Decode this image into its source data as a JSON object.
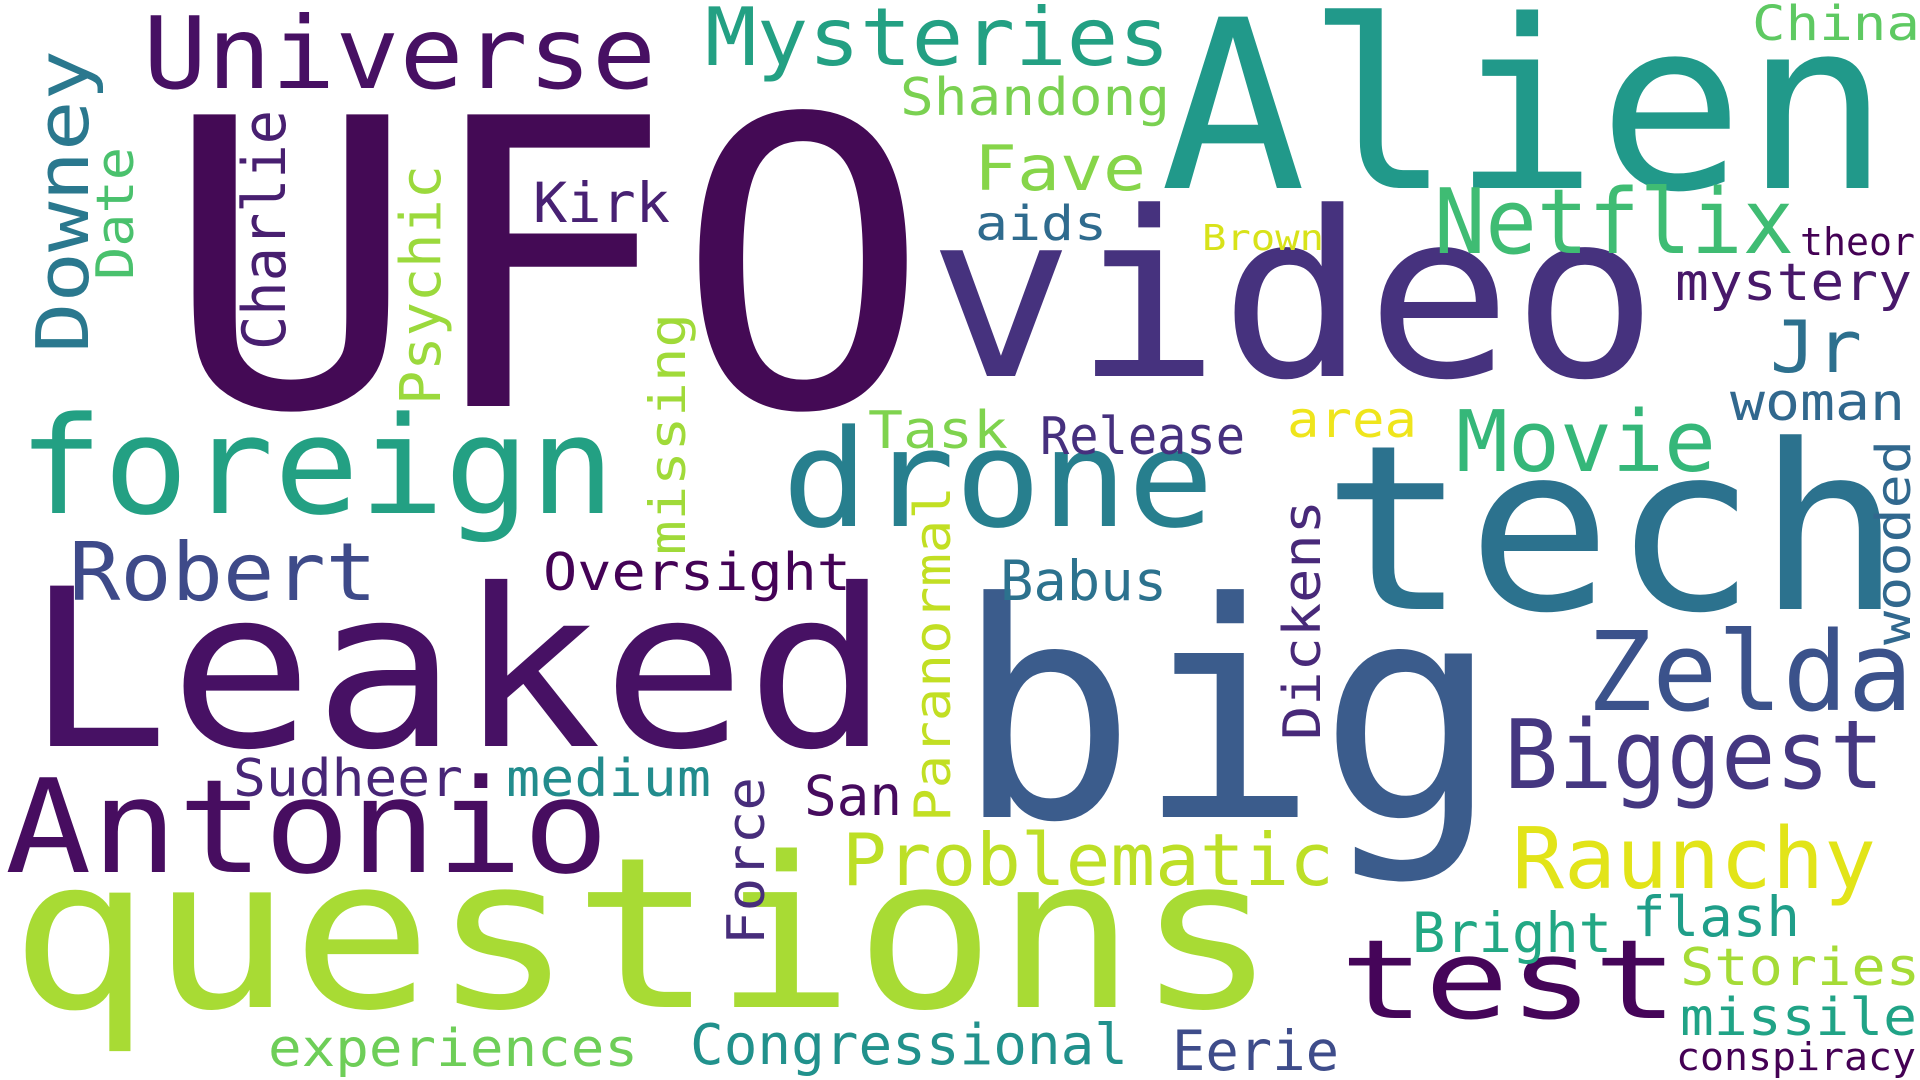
{
  "words": [
    {
      "text": "UFO",
      "color": "#440a55",
      "rotation": "horizontal"
    },
    {
      "text": "Alien",
      "color": "#21998a",
      "rotation": "horizontal"
    },
    {
      "text": "video",
      "color": "#46327e",
      "rotation": "horizontal"
    },
    {
      "text": "tech",
      "color": "#2c728e",
      "rotation": "horizontal"
    },
    {
      "text": "big",
      "color": "#3b5c8c",
      "rotation": "horizontal"
    },
    {
      "text": "questions",
      "color": "#a8db34",
      "rotation": "horizontal"
    },
    {
      "text": "Leaked",
      "color": "#471164",
      "rotation": "horizontal"
    },
    {
      "text": "foreign",
      "color": "#23a083",
      "rotation": "horizontal"
    },
    {
      "text": "drone",
      "color": "#277f8e",
      "rotation": "horizontal"
    },
    {
      "text": "Antonio",
      "color": "#470d60",
      "rotation": "horizontal"
    },
    {
      "text": "Universe",
      "color": "#471063",
      "rotation": "horizontal"
    },
    {
      "text": "Mysteries",
      "color": "#23a083",
      "rotation": "horizontal"
    },
    {
      "text": "Netflix",
      "color": "#3fbc73",
      "rotation": "horizontal"
    },
    {
      "text": "test",
      "color": "#450559",
      "rotation": "horizontal"
    },
    {
      "text": "Zelda",
      "color": "#3b528b",
      "rotation": "horizontal"
    },
    {
      "text": "Biggest",
      "color": "#453781",
      "rotation": "horizontal"
    },
    {
      "text": "Raunchy",
      "color": "#e2e418",
      "rotation": "horizontal"
    },
    {
      "text": "Movie",
      "color": "#35b779",
      "rotation": "horizontal"
    },
    {
      "text": "Robert",
      "color": "#3e4a89",
      "rotation": "horizontal"
    },
    {
      "text": "Problematic",
      "color": "#bddf26",
      "rotation": "horizontal"
    },
    {
      "text": "Congressional",
      "color": "#21918c",
      "rotation": "horizontal"
    },
    {
      "text": "experiences",
      "color": "#6ece58",
      "rotation": "horizontal"
    },
    {
      "text": "Downey",
      "color": "#2a788e",
      "rotation": "vertical"
    },
    {
      "text": "Charlie",
      "color": "#481f70",
      "rotation": "vertical"
    },
    {
      "text": "Psychic",
      "color": "#9bd93c",
      "rotation": "vertical"
    },
    {
      "text": "Date",
      "color": "#4ac16d",
      "rotation": "vertical"
    },
    {
      "text": "missing",
      "color": "#a0da39",
      "rotation": "vertical"
    },
    {
      "text": "Paranormal",
      "color": "#c2df23",
      "rotation": "vertical"
    },
    {
      "text": "Dickens",
      "color": "#482979",
      "rotation": "vertical"
    },
    {
      "text": "wooded",
      "color": "#31688e",
      "rotation": "vertical"
    },
    {
      "text": "Force",
      "color": "#472d7b",
      "rotation": "vertical"
    },
    {
      "text": "Shandong",
      "color": "#7ad151",
      "rotation": "horizontal"
    },
    {
      "text": "Fave",
      "color": "#86d549",
      "rotation": "horizontal"
    },
    {
      "text": "Kirk",
      "color": "#482173",
      "rotation": "horizontal"
    },
    {
      "text": "aids",
      "color": "#2f6b8e",
      "rotation": "horizontal"
    },
    {
      "text": "Brown",
      "color": "#d8e219",
      "rotation": "horizontal"
    },
    {
      "text": "China",
      "color": "#5ec962",
      "rotation": "horizontal"
    },
    {
      "text": "theor",
      "color": "#440154",
      "rotation": "horizontal"
    },
    {
      "text": "mystery",
      "color": "#48186a",
      "rotation": "horizontal"
    },
    {
      "text": "Jr",
      "color": "#2d708e",
      "rotation": "horizontal"
    },
    {
      "text": "woman",
      "color": "#31688e",
      "rotation": "horizontal"
    },
    {
      "text": "Task",
      "color": "#7fd34e",
      "rotation": "horizontal"
    },
    {
      "text": "Release",
      "color": "#46307e",
      "rotation": "horizontal"
    },
    {
      "text": "area",
      "color": "#efe51c",
      "rotation": "horizontal"
    },
    {
      "text": "Oversight",
      "color": "#440256",
      "rotation": "horizontal"
    },
    {
      "text": "Babus",
      "color": "#2c728e",
      "rotation": "horizontal"
    },
    {
      "text": "Sudheer",
      "color": "#482677",
      "rotation": "horizontal"
    },
    {
      "text": "medium",
      "color": "#228c8d",
      "rotation": "horizontal"
    },
    {
      "text": "San",
      "color": "#460b5e",
      "rotation": "horizontal"
    },
    {
      "text": "Bright",
      "color": "#22a884",
      "rotation": "horizontal"
    },
    {
      "text": "flash",
      "color": "#1f9e89",
      "rotation": "horizontal"
    },
    {
      "text": "Stories",
      "color": "#a5db36",
      "rotation": "horizontal"
    },
    {
      "text": "missile",
      "color": "#20a386",
      "rotation": "horizontal"
    },
    {
      "text": "conspiracy",
      "color": "#440154",
      "rotation": "horizontal"
    },
    {
      "text": "Eerie",
      "color": "#3e4c8a",
      "rotation": "horizontal"
    }
  ]
}
